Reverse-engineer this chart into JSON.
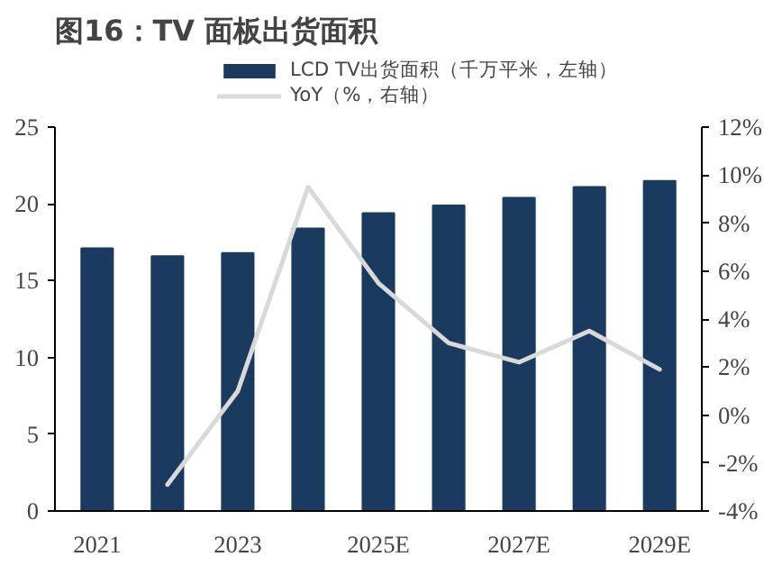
{
  "chart_data": {
    "type": "bar",
    "title": "图16：TV 面板出货面积",
    "categories": [
      "2021",
      null,
      "2023",
      null,
      "2025E",
      null,
      "2027E",
      null,
      "2029E"
    ],
    "series": [
      {
        "name": "LCD TV出货面积（千万平米，左轴）",
        "color": "#1a3a5f",
        "values": [
          17.1,
          16.6,
          16.8,
          18.4,
          19.4,
          19.9,
          20.4,
          21.1,
          21.5
        ]
      },
      {
        "name": "YoY（%，右轴）",
        "type": "line",
        "axis": "y2",
        "color": "#d9d9d9",
        "values": [
          null,
          -2.9,
          1.0,
          9.5,
          5.5,
          3.0,
          2.2,
          3.5,
          1.9
        ]
      }
    ],
    "ylim": [
      0,
      25
    ],
    "yticks": [
      0,
      5,
      10,
      15,
      20,
      25
    ],
    "y2lim": [
      -4,
      12
    ],
    "y2ticks": [
      {
        "value": -4,
        "label": "-4%"
      },
      {
        "value": -2,
        "label": "-2%"
      },
      {
        "value": 0,
        "label": "0%"
      },
      {
        "value": 2,
        "label": "2%"
      },
      {
        "value": 4,
        "label": "4%"
      },
      {
        "value": 6,
        "label": "6%"
      },
      {
        "value": 8,
        "label": "8%"
      },
      {
        "value": 10,
        "label": "10%"
      },
      {
        "value": 12,
        "label": "12%"
      }
    ],
    "grid": false,
    "legend": "top",
    "marker": "none"
  }
}
